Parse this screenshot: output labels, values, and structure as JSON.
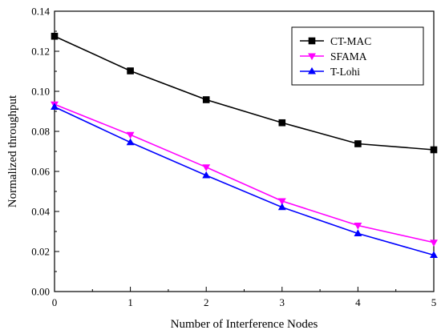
{
  "chart_data": {
    "type": "line",
    "xlabel": "Number of Interference Nodes",
    "ylabel": "Normalized throughput",
    "x": [
      0,
      1,
      2,
      3,
      4,
      5
    ],
    "xlim": [
      0,
      5
    ],
    "ylim": [
      0,
      0.14
    ],
    "xticks": [
      "0",
      "1",
      "2",
      "3",
      "4",
      "5"
    ],
    "yticks": [
      "0.00",
      "0.02",
      "0.04",
      "0.06",
      "0.08",
      "0.10",
      "0.12",
      "0.14"
    ],
    "grid": false,
    "legend_position": "top-right",
    "series": [
      {
        "name": "CT-MAC",
        "values": [
          0.1275,
          0.1102,
          0.0958,
          0.0843,
          0.0738,
          0.0708
        ],
        "color": "#000000",
        "marker": "square"
      },
      {
        "name": "SFAMA",
        "values": [
          0.0935,
          0.0783,
          0.0621,
          0.0452,
          0.033,
          0.0245
        ],
        "color": "#ff00ff",
        "marker": "triangle-down"
      },
      {
        "name": "T-Lohi",
        "values": [
          0.0922,
          0.0745,
          0.058,
          0.0421,
          0.029,
          0.0182
        ],
        "color": "#0000ff",
        "marker": "triangle-up"
      }
    ]
  }
}
